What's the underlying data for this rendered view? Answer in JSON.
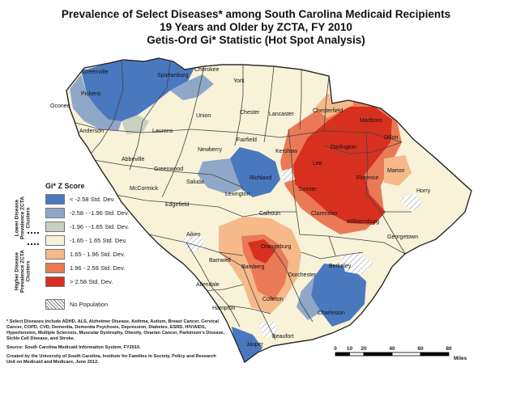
{
  "title": {
    "line1": "Prevalence of Select Diseases* among South Carolina Medicaid Recipients",
    "line2": "19 Years and Older by ZCTA, FY 2010",
    "line3": "Getis-Ord Gi* Statistic (Hot Spot Analysis)"
  },
  "legend": {
    "title": "Gi* Z Score",
    "lower_label": "Lower Disease Prevalence ZCTA Clusters",
    "higher_label": "Higher Disease Prevalence ZCTA Clusters",
    "items": [
      {
        "label": "< -2.58 Std. Dev.",
        "color": "#4a78bf"
      },
      {
        "label": "-2.58 - -1.96 Std. Dev.",
        "color": "#8fa8c8"
      },
      {
        "label": "-1.96 - -1.65 Std. Dev.",
        "color": "#c8d0c0"
      },
      {
        "label": "-1.65 - 1.65 Std. Dev.",
        "color": "#f7f2d8"
      },
      {
        "label": "1.65 - 1.96 Std. Dev.",
        "color": "#f5b98a"
      },
      {
        "label": "1.96 - 2.58 Std. Dev.",
        "color": "#ea7a55"
      },
      {
        "label": "> 2.58 Std. Dev.",
        "color": "#d7301f"
      }
    ],
    "no_population": "No Population"
  },
  "notes": {
    "diseases": "* Select Diseases include ADHD, ALS, Alzheimer Disease, Asthma, Autism, Breast Cancer, Cervical Cancer, COPD, CVD, Dementia, Dementia Psychosis, Depression, Diabetes, ESRD, HIV/AIDS, Hypertension, Multiple Sclerosis, Muscular Dystrophy, Obesity, Ovarian Cancer, Parkinson's Disease, Sickle Cell Disease, and Stroke.",
    "source": "Source:  South Carolina Medicaid Information System, FY2010.",
    "credit": "Created by the University of South Carolina, Institute for Families in Society, Policy and Research Unit on Medicaid and Medicare, June 2012."
  },
  "scale": {
    "ticks": [
      "0",
      "10",
      "20",
      "40",
      "60",
      "80"
    ],
    "tick_values": [
      0,
      10,
      20,
      40,
      60,
      80
    ],
    "max_value": 80,
    "unit": "Miles"
  },
  "counties": [
    "Greenville",
    "Spartanburg",
    "Cherokee",
    "York",
    "Pickens",
    "Oconee",
    "Anderson",
    "Laurens",
    "Union",
    "Chester",
    "Lancaster",
    "Chesterfield",
    "Marlboro",
    "Dillon",
    "Kershaw",
    "Darlington",
    "Lee",
    "Marion",
    "Fairfield",
    "Newberry",
    "Abbeville",
    "Greenwood",
    "Richland",
    "Florence",
    "Horry",
    "Sumter",
    "McCormick",
    "Saluda",
    "Lexington",
    "Edgefield",
    "Clarendon",
    "Calhoun",
    "Williamsburg",
    "Aiken",
    "Georgetown",
    "Orangeburg",
    "Barnwell",
    "Bamberg",
    "Berkeley",
    "Allendale",
    "Dorchester",
    "Colleton",
    "Charleston",
    "Hampton",
    "Beaufort",
    "Jasper"
  ]
}
